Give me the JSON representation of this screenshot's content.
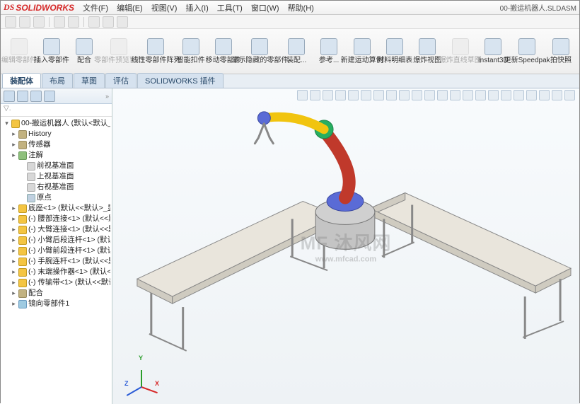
{
  "app": {
    "logo_text": "SOLIDWORKS",
    "document": "00-搬运机器人.SLDASM"
  },
  "menu": [
    "文件(F)",
    "编辑(E)",
    "视图(V)",
    "插入(I)",
    "工具(T)",
    "窗口(W)",
    "帮助(H)"
  ],
  "ribbon": [
    {
      "label": "编辑零部件",
      "disabled": true
    },
    {
      "label": "插入零部件",
      "disabled": false
    },
    {
      "label": "配合",
      "disabled": false
    },
    {
      "label": "零部件预览窗口",
      "disabled": true
    },
    {
      "label": "线性零部件阵列",
      "disabled": false
    },
    {
      "label": "智能扣件",
      "disabled": false
    },
    {
      "label": "移动零部件",
      "disabled": false
    },
    {
      "label": "显示隐藏的零部件",
      "disabled": false
    },
    {
      "label": "装配...",
      "disabled": false
    },
    {
      "label": "参考...",
      "disabled": false
    },
    {
      "label": "新建运动算例",
      "disabled": false
    },
    {
      "label": "材料明细表",
      "disabled": false
    },
    {
      "label": "爆炸视图",
      "disabled": false
    },
    {
      "label": "爆炸直线草图",
      "disabled": true
    },
    {
      "label": "Instant3D",
      "disabled": false
    },
    {
      "label": "更新Speedpak",
      "disabled": false
    },
    {
      "label": "拍快照",
      "disabled": false
    }
  ],
  "tabs": [
    "装配体",
    "布局",
    "草图",
    "评估",
    "SOLIDWORKS 插件"
  ],
  "active_tab": 0,
  "tree": {
    "filter_placeholder": "▽.",
    "root": "00-搬运机器人 (默认<默认_显示",
    "nodes": [
      {
        "d": 1,
        "ic": "fld",
        "tw": "▸",
        "t": "History"
      },
      {
        "d": 1,
        "ic": "fld",
        "tw": "▸",
        "t": "传感器"
      },
      {
        "d": 1,
        "ic": "ann",
        "tw": "▸",
        "t": "注解"
      },
      {
        "d": 2,
        "ic": "pln",
        "tw": "",
        "t": "前视基准面"
      },
      {
        "d": 2,
        "ic": "pln",
        "tw": "",
        "t": "上视基准面"
      },
      {
        "d": 2,
        "ic": "pln",
        "tw": "",
        "t": "右视基准面"
      },
      {
        "d": 2,
        "ic": "org",
        "tw": "",
        "t": "原点"
      },
      {
        "d": 1,
        "ic": "prt",
        "tw": "▸",
        "t": "底座<1> (默认<<默认>_显"
      },
      {
        "d": 1,
        "ic": "prt",
        "tw": "▸",
        "t": "(-) 腰部连接<1> (默认<<默"
      },
      {
        "d": 1,
        "ic": "prt",
        "tw": "▸",
        "t": "(-) 大臂连接<1> (默认<<默"
      },
      {
        "d": 1,
        "ic": "prt",
        "tw": "▸",
        "t": "(-) 小臂后段连杆<1> (默认<"
      },
      {
        "d": 1,
        "ic": "prt",
        "tw": "▸",
        "t": "(-) 小臂前段连杆<1> (默认<"
      },
      {
        "d": 1,
        "ic": "prt",
        "tw": "▸",
        "t": "(-) 手腕连杆<1> (默认<<默"
      },
      {
        "d": 1,
        "ic": "prt",
        "tw": "▸",
        "t": "(-) 末端操作器<1> (默认<<"
      },
      {
        "d": 1,
        "ic": "prt",
        "tw": "▸",
        "t": "(-) 传输带<1> (默认<<默认"
      },
      {
        "d": 1,
        "ic": "fld",
        "tw": "▸",
        "t": "配合"
      },
      {
        "d": 1,
        "ic": "pat",
        "tw": "▸",
        "t": "镜向零部件1"
      }
    ]
  },
  "watermark": {
    "main": "MF 沐风网",
    "sub": "www.mfcad.com"
  },
  "scene": {
    "bg_top": "#f8fbfd",
    "bg_bot": "#eef2f5",
    "belt_fill": "#e9e5dc",
    "belt_edge": "#888",
    "leg_fill": "#d8d8d8",
    "leg_edge": "#888",
    "robot": {
      "base": "#b0b0b0",
      "base_edge": "#777",
      "joint1": "#5a6bd6",
      "arm1": "#c0392b",
      "joint2": "#27ae60",
      "arm2": "#f1c40f",
      "wrist": "#5a6bd6",
      "gripper": "#888"
    },
    "triad": {
      "x": "#d62828",
      "x_lbl": "X",
      "y": "#2a9d2a",
      "y_lbl": "Y",
      "z": "#2a5bd6",
      "z_lbl": "Z"
    }
  }
}
